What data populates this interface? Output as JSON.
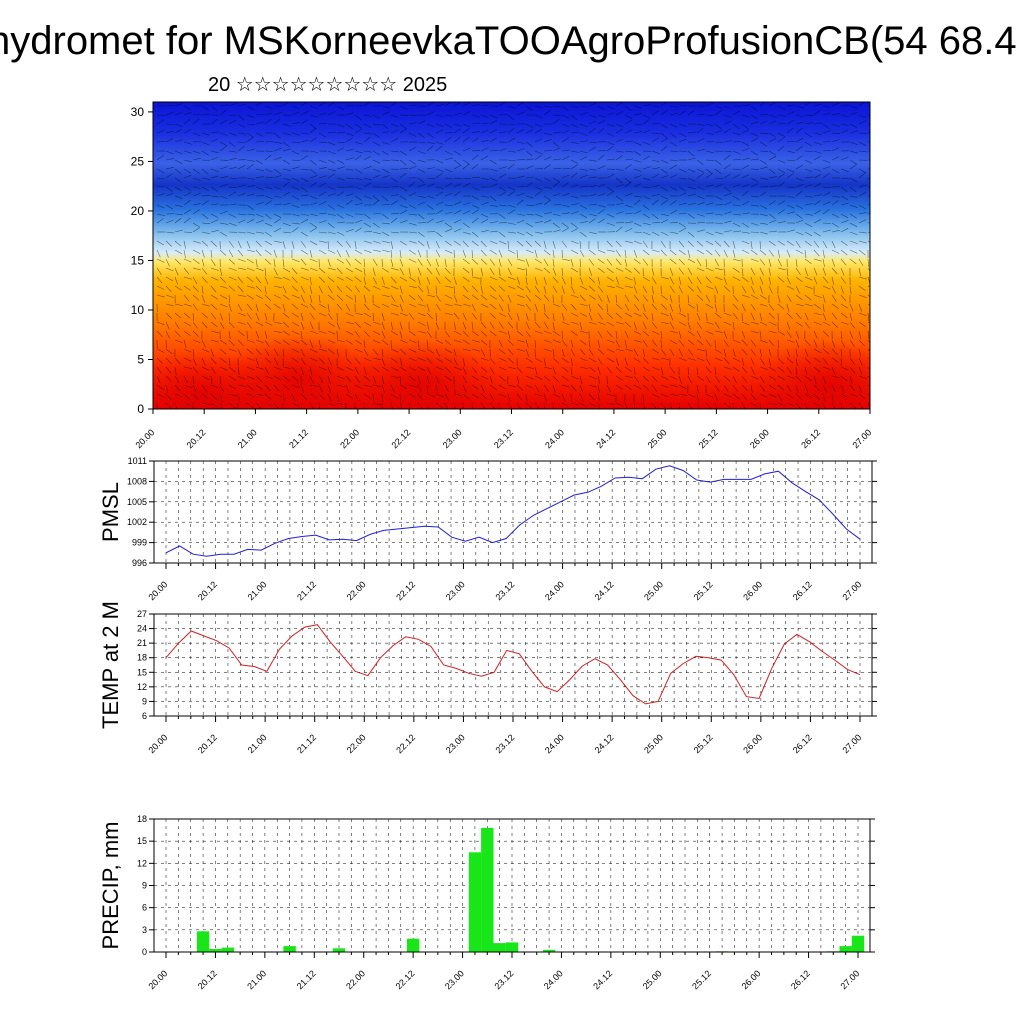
{
  "title": "hydromet for MSKorneevkaTOOAgroProfusionCB(54 68.4",
  "subtitle": "20 ☆☆☆☆☆☆☆☆☆ 2025",
  "colors": {
    "pmsl": "#1f1fd6",
    "temp": "#d21f1f",
    "precip": "#19e619"
  },
  "chart_data": [
    {
      "type": "heatmap",
      "name": "cross-section",
      "title": "",
      "xlabel": "",
      "ylabel": "",
      "x_tick_labels": [
        "20.00",
        "20.12",
        "21.00",
        "21.12",
        "22.00",
        "22.12",
        "23.00",
        "23.12",
        "24.00",
        "24.12",
        "25.00",
        "25.12",
        "26.00",
        "26.12",
        "27.00"
      ],
      "y_ticks": [
        0,
        5,
        10,
        15,
        20,
        25,
        30
      ],
      "ylim": [
        0,
        31
      ],
      "colormap": "red-orange-yellow-lightblue-blue",
      "overlay": "wind-barbs"
    },
    {
      "type": "line",
      "ylabel": "PMSL",
      "x_tick_labels": [
        "20.00",
        "20.12",
        "21.00",
        "21.12",
        "22.00",
        "22.12",
        "23.00",
        "23.12",
        "24.00",
        "24.12",
        "25.00",
        "25.12",
        "26.00",
        "26.12",
        "27.00"
      ],
      "y_ticks": [
        996,
        999,
        1002,
        1005,
        1008,
        1011
      ],
      "ylim": [
        996,
        1011
      ],
      "grid": true,
      "values": [
        997.5,
        998.5,
        997.3,
        997.0,
        997.3,
        997.3,
        998.0,
        997.9,
        998.9,
        999.6,
        999.9,
        1000.1,
        999.4,
        999.5,
        999.3,
        1000.2,
        1000.8,
        1001.0,
        1001.2,
        1001.4,
        1001.3,
        999.8,
        999.2,
        999.8,
        999.0,
        999.6,
        1001.6,
        1003.0,
        1004.0,
        1005.0,
        1006.0,
        1006.4,
        1007.3,
        1008.5,
        1008.6,
        1008.4,
        1009.8,
        1010.3,
        1009.6,
        1008.2,
        1007.9,
        1008.3,
        1008.3,
        1008.3,
        1009.1,
        1009.5,
        1007.8,
        1006.5,
        1005.3,
        1003.2,
        1001.0,
        999.5
      ]
    },
    {
      "type": "line",
      "ylabel": "TEMP at 2 M",
      "x_tick_labels": [
        "20.00",
        "20.12",
        "21.00",
        "21.12",
        "22.00",
        "22.12",
        "23.00",
        "23.12",
        "24.00",
        "24.12",
        "25.00",
        "25.12",
        "26.00",
        "26.12",
        "27.00"
      ],
      "y_ticks": [
        6,
        9,
        12,
        15,
        18,
        21,
        24,
        27
      ],
      "ylim": [
        6,
        27
      ],
      "grid": true,
      "values": [
        18,
        21,
        23.5,
        22.5,
        21.5,
        20,
        16.5,
        16.2,
        15.2,
        19.8,
        22.5,
        24.3,
        24.8,
        21.3,
        18.3,
        15.2,
        14.3,
        18,
        20.5,
        22.3,
        21.8,
        20.3,
        16.5,
        15.8,
        14.8,
        14.2,
        15,
        19.5,
        18.8,
        15.2,
        12,
        11,
        13.5,
        16.3,
        17.8,
        16.5,
        13.5,
        10.2,
        8.5,
        9,
        14.8,
        16.8,
        18.3,
        18,
        17.5,
        14.5,
        10,
        9.6,
        15.8,
        20.8,
        22.8,
        21.3,
        19.3,
        17.5,
        15.6,
        14.5
      ]
    },
    {
      "type": "bar",
      "ylabel": "PRECIP, mm",
      "x_tick_labels": [
        "20.00",
        "20.12",
        "21.00",
        "21.12",
        "22.00",
        "22.12",
        "23.00",
        "23.12",
        "24.00",
        "24.12",
        "25.00",
        "25.12",
        "26.00",
        "26.12",
        "27.00"
      ],
      "y_ticks": [
        0,
        3,
        6,
        9,
        12,
        15,
        18
      ],
      "ylim": [
        0,
        18
      ],
      "grid": true,
      "values": [
        0,
        0,
        0,
        2.8,
        0.4,
        0.6,
        0,
        0,
        0,
        0,
        0.8,
        0,
        0,
        0,
        0.5,
        0,
        0,
        0,
        0,
        0,
        1.8,
        0,
        0,
        0,
        0,
        13.5,
        16.8,
        1.2,
        1.3,
        0,
        0,
        0.3,
        0,
        0,
        0,
        0,
        0,
        0,
        0,
        0,
        0,
        0,
        0,
        0,
        0,
        0.1,
        0,
        0,
        0,
        0,
        0,
        0,
        0,
        0,
        0.1,
        0.8,
        2.2
      ]
    }
  ]
}
